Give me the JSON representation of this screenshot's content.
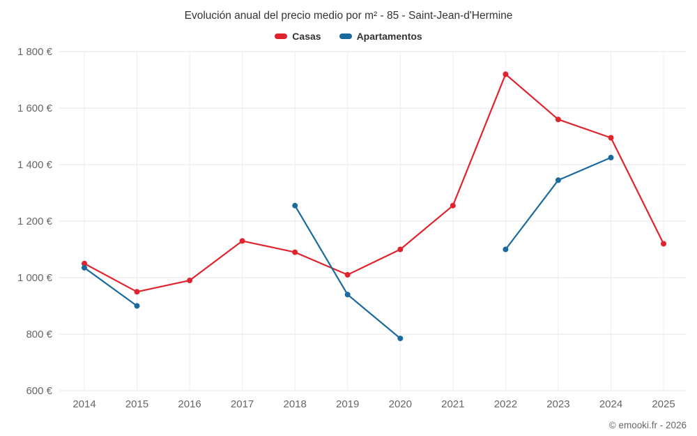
{
  "chart": {
    "title": "Evolución anual del precio medio por m² - 85 - Saint-Jean-d'Hermine",
    "credit": "© emooki.fr - 2026"
  },
  "chart_data": {
    "type": "line",
    "x": [
      2014,
      2015,
      2016,
      2017,
      2018,
      2019,
      2020,
      2021,
      2022,
      2023,
      2024,
      2025
    ],
    "series": [
      {
        "name": "Casas",
        "color": "#e0242e",
        "values": [
          1050,
          950,
          990,
          1130,
          1090,
          1010,
          1100,
          1255,
          1720,
          1560,
          1495,
          1120
        ]
      },
      {
        "name": "Apartamentos",
        "color": "#1b6a9d",
        "values": [
          1035,
          900,
          null,
          null,
          1255,
          940,
          785,
          null,
          1100,
          1345,
          1425,
          null
        ]
      }
    ],
    "ylim": [
      600,
      1800
    ],
    "yticks": [
      600,
      800,
      1000,
      1200,
      1400,
      1600,
      1800
    ],
    "ytick_labels": [
      "600 €",
      "800 €",
      "1 000 €",
      "1 200 €",
      "1 400 €",
      "1 600 €",
      "1 800 €"
    ],
    "ylabel": "",
    "xlabel": "",
    "grid": true,
    "legend_position": "top",
    "title": "Evolución anual del precio medio por m² - 85 - Saint-Jean-d'Hermine"
  }
}
